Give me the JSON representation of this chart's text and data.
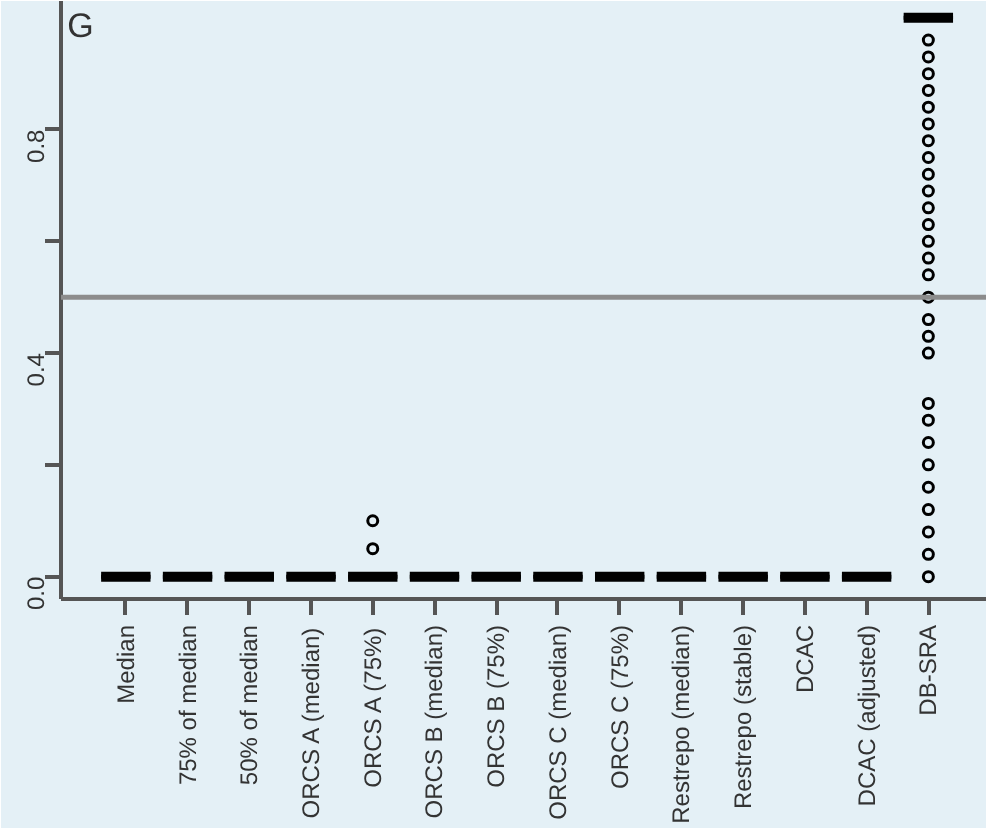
{
  "chart_data": {
    "type": "box",
    "annotations": [
      "G"
    ],
    "categories": [
      "Median",
      "75% of median",
      "50% of median",
      "ORCS A (median)",
      "ORCS A (75%)",
      "ORCS B (median)",
      "ORCS B (75%)",
      "ORCS C (median)",
      "ORCS C (75%)",
      "Restrepo (median)",
      "Restrepo (stable)",
      "DCAC",
      "DCAC (adjusted)",
      "DB-SRA"
    ],
    "boxes": [
      {
        "low": 0,
        "q1": 0,
        "median": 0,
        "q3": 0,
        "high": 0
      },
      {
        "low": 0,
        "q1": 0,
        "median": 0,
        "q3": 0,
        "high": 0
      },
      {
        "low": 0,
        "q1": 0,
        "median": 0,
        "q3": 0,
        "high": 0
      },
      {
        "low": 0,
        "q1": 0,
        "median": 0,
        "q3": 0,
        "high": 0
      },
      {
        "low": 0,
        "q1": 0,
        "median": 0,
        "q3": 0,
        "high": 0,
        "outliers": [
          0.05,
          0.1
        ]
      },
      {
        "low": 0,
        "q1": 0,
        "median": 0,
        "q3": 0,
        "high": 0
      },
      {
        "low": 0,
        "q1": 0,
        "median": 0,
        "q3": 0,
        "high": 0
      },
      {
        "low": 0,
        "q1": 0,
        "median": 0,
        "q3": 0,
        "high": 0
      },
      {
        "low": 0,
        "q1": 0,
        "median": 0,
        "q3": 0,
        "high": 0
      },
      {
        "low": 0,
        "q1": 0,
        "median": 0,
        "q3": 0,
        "high": 0
      },
      {
        "low": 0,
        "q1": 0,
        "median": 0,
        "q3": 0,
        "high": 0
      },
      {
        "low": 0,
        "q1": 0,
        "median": 0,
        "q3": 0,
        "high": 0
      },
      {
        "low": 0,
        "q1": 0,
        "median": 0,
        "q3": 0,
        "high": 0
      },
      {
        "low": 1,
        "q1": 1,
        "median": 1,
        "q3": 1,
        "high": 1,
        "outliers": [
          0.96,
          0.93,
          0.9,
          0.87,
          0.84,
          0.81,
          0.78,
          0.75,
          0.72,
          0.69,
          0.66,
          0.63,
          0.6,
          0.57,
          0.54,
          0.5,
          0.46,
          0.43,
          0.4,
          0.31,
          0.28,
          0.24,
          0.2,
          0.16,
          0.12,
          0.08,
          0.04,
          0.0
        ]
      }
    ],
    "ylim": [
      -0.04,
      1.03
    ],
    "yticks": [
      {
        "value": 0,
        "label": "0.0"
      },
      {
        "value": 0.2,
        "label": null
      },
      {
        "value": 0.4,
        "label": "0.4"
      },
      {
        "value": 0.6,
        "label": null
      },
      {
        "value": 0.8,
        "label": "0.8"
      }
    ],
    "ref_lines": [
      {
        "axis": "y",
        "value": 0.5,
        "label": null,
        "color": "#8c8c8c"
      }
    ],
    "marker": "circle",
    "grid": false
  }
}
